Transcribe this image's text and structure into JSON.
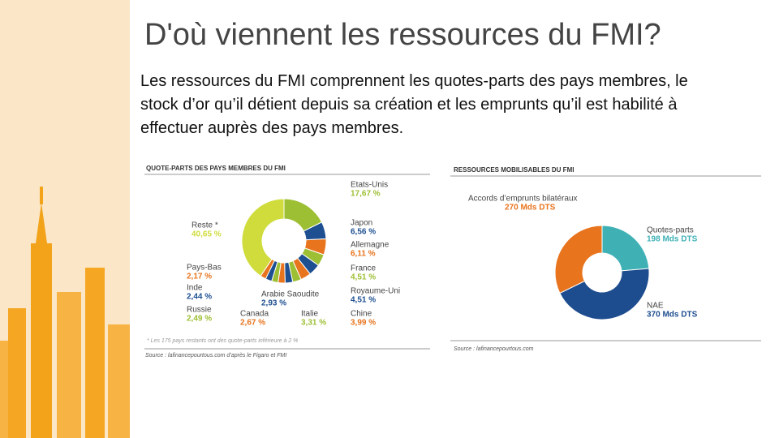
{
  "title": "D'où viennent les ressources du FMI?",
  "body": "Les ressources du FMI comprennent les quotes-parts des pays membres, le stock d’or qu’il détient depuis sa création et les emprunts qu’il est habilité à effectuer auprès des pays membres.",
  "chart_data": [
    {
      "type": "donut",
      "title": "QUOTE-PARTS DES PAYS MEMBRES DU FMI",
      "categories": [
        "Etats-Unis",
        "Japon",
        "Allemagne",
        "France",
        "Royaume-Uni",
        "Chine",
        "Italie",
        "Arabie Saoudite",
        "Canada",
        "Russie",
        "Inde",
        "Pays-Bas",
        "Reste *"
      ],
      "values": [
        17.67,
        6.56,
        6.11,
        4.51,
        4.51,
        3.99,
        3.31,
        2.93,
        2.67,
        2.49,
        2.44,
        2.17,
        40.65
      ],
      "value_labels": [
        "17,67 %",
        "6,56 %",
        "6,11 %",
        "4,51 %",
        "4,51 %",
        "3,99 %",
        "3,31 %",
        "2,93 %",
        "2,67 %",
        "2,49 %",
        "2,44 %",
        "2,17 %",
        "40,65 %"
      ],
      "colors": [
        "#9dbf34",
        "#1d4f91",
        "#e8741e",
        "#9dbf34",
        "#1d4f91",
        "#e8741e",
        "#9dbf34",
        "#1d4f91",
        "#e8741e",
        "#9dbf34",
        "#1d4f91",
        "#e8741e",
        "#cfdc3c"
      ],
      "footnote": "* Les 175 pays restants ont des quote-parts inférieure à 2 %",
      "source": "Source : lafinancepourtous.com d’après le Figaro et FMI"
    },
    {
      "type": "donut",
      "title": "RESSOURCES MOBILISABLES DU FMI",
      "categories": [
        "Quotes-parts",
        "NAE",
        "Accords d’emprunts bilatéraux"
      ],
      "values": [
        198,
        370,
        270
      ],
      "value_labels": [
        "198 Mds DTS",
        "370 Mds DTS",
        "270 Mds DTS"
      ],
      "colors": [
        "#3fb1b5",
        "#1e4d8f",
        "#e8741e"
      ],
      "source": "Source : lafinancepourtous.com"
    }
  ]
}
